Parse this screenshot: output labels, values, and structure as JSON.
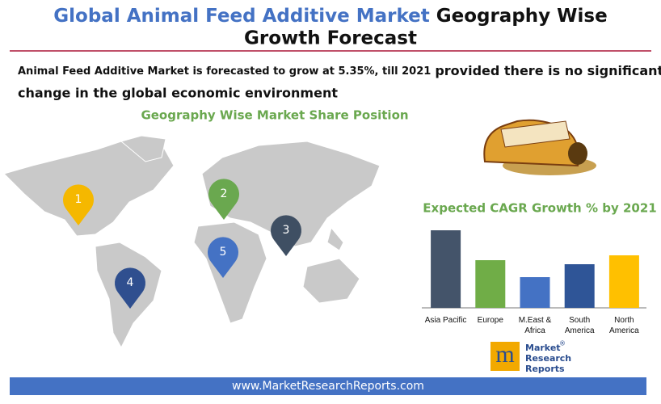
{
  "header": {
    "title_part1": "Global Animal Feed Additive Market",
    "title_part2": "Geography Wise Growth Forecast"
  },
  "summary": {
    "part1": "Animal Feed Additive Market is forecasted to grow at 5.35%, till 2021",
    "part2": "provided there is no significant change in the global economic environment"
  },
  "map": {
    "heading": "Geography Wise Market Share Position",
    "pins": [
      {
        "label": "1",
        "color": "#f5b800"
      },
      {
        "label": "2",
        "color": "#6aa84f"
      },
      {
        "label": "3",
        "color": "#3f4f63"
      },
      {
        "label": "4",
        "color": "#2f4f8f"
      },
      {
        "label": "5",
        "color": "#4472c4"
      }
    ]
  },
  "chart_data": {
    "type": "bar",
    "title": "Expected CAGR Growth % by 2021",
    "categories": [
      "Asia Pacific",
      "Europe",
      "M.East & Africa",
      "South America",
      "North America"
    ],
    "series": [
      {
        "values": [
          96,
          59,
          38,
          54,
          65
        ],
        "colors": [
          "#44546a",
          "#70ad47",
          "#4472c4",
          "#2f5597",
          "#ffc000"
        ]
      }
    ],
    "ylim": [
      0,
      100
    ]
  },
  "logo": {
    "line1": "Market",
    "line2": "Research",
    "line3": "Reports",
    "mark": "®"
  },
  "footer": {
    "url": "www.MarketResearchReports.com"
  }
}
